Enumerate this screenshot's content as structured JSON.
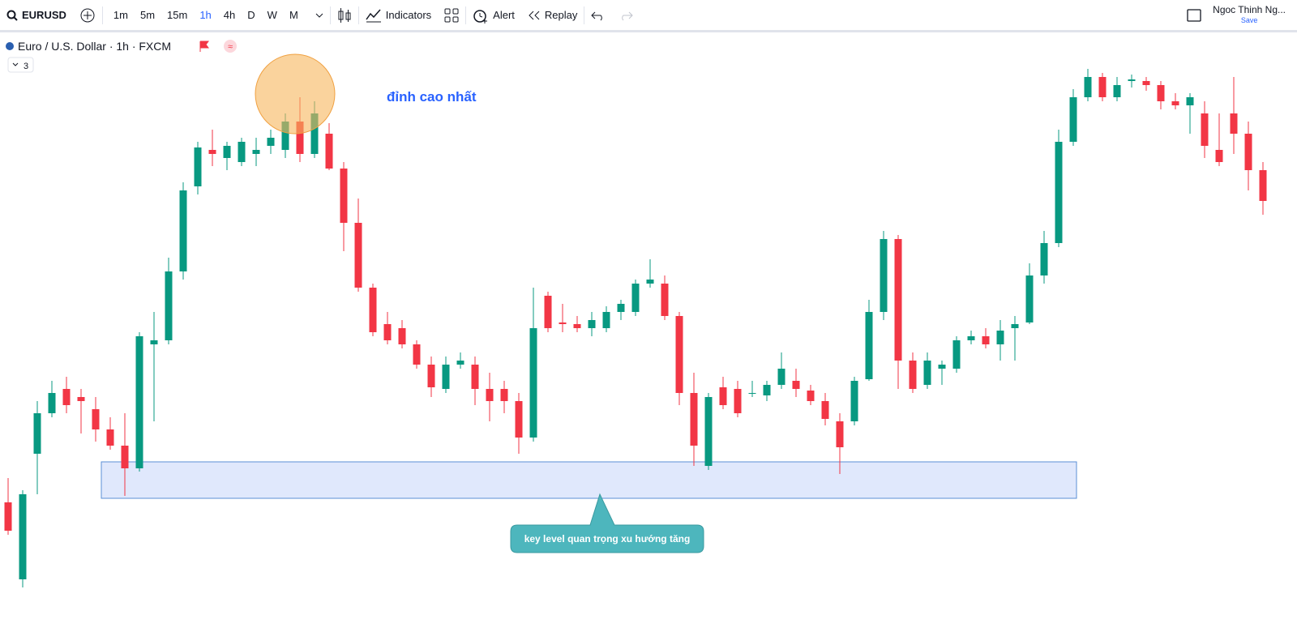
{
  "toolbar": {
    "symbol": "EURUSD",
    "intervals": [
      "1m",
      "5m",
      "15m",
      "1h",
      "4h",
      "D",
      "W",
      "M"
    ],
    "active_interval_index": 3,
    "buttons": [
      "Indicators",
      "Alert",
      "Replay"
    ],
    "user": "Ngoc Thinh Ng...",
    "save": "Save"
  },
  "chart_data": {
    "type": "candlestick",
    "title": "Euro / U.S. Dollar · 1h · FXCM",
    "collapsed_count": "3",
    "up_color": "#089981",
    "down_color": "#f23645",
    "ylim": [
      40,
      760
    ],
    "open": [
      180,
      85,
      240,
      290,
      320,
      310,
      295,
      270,
      250,
      222,
      375,
      380,
      465,
      570,
      615,
      605,
      600,
      610,
      620,
      615,
      650,
      610,
      635,
      592,
      525,
      445,
      400,
      395,
      375,
      350,
      320,
      350,
      350,
      320,
      320,
      305,
      260,
      435,
      402,
      400,
      395,
      395,
      415,
      415,
      450,
      450,
      410,
      315,
      225,
      322,
      320,
      315,
      312,
      325,
      330,
      318,
      305,
      280,
      280,
      332,
      415,
      505,
      355,
      325,
      345,
      345,
      380,
      385,
      375,
      395,
      402,
      460,
      500,
      625,
      680,
      705,
      680,
      700,
      700,
      695,
      675,
      670,
      660,
      615,
      660,
      635,
      590
    ],
    "high": [
      210,
      195,
      305,
      330,
      335,
      320,
      310,
      285,
      290,
      390,
      415,
      482,
      575,
      625,
      640,
      625,
      630,
      630,
      640,
      660,
      680,
      675,
      648,
      600,
      555,
      450,
      415,
      405,
      380,
      360,
      360,
      365,
      360,
      340,
      330,
      315,
      445,
      440,
      425,
      410,
      415,
      422,
      430,
      455,
      480,
      460,
      415,
      340,
      315,
      335,
      330,
      330,
      330,
      365,
      345,
      325,
      315,
      290,
      335,
      430,
      515,
      510,
      365,
      365,
      355,
      385,
      392,
      395,
      405,
      410,
      475,
      515,
      640,
      690,
      715,
      710,
      705,
      708,
      705,
      700,
      685,
      685,
      675,
      660,
      705,
      650,
      600
    ],
    "low": [
      140,
      75,
      190,
      285,
      290,
      265,
      255,
      245,
      188,
      218,
      280,
      375,
      455,
      560,
      595,
      590,
      595,
      595,
      610,
      605,
      600,
      605,
      590,
      490,
      440,
      385,
      375,
      370,
      345,
      310,
      315,
      345,
      300,
      280,
      290,
      240,
      255,
      390,
      390,
      390,
      385,
      390,
      405,
      410,
      445,
      405,
      300,
      225,
      220,
      295,
      285,
      310,
      305,
      320,
      310,
      300,
      275,
      215,
      275,
      330,
      405,
      320,
      315,
      320,
      325,
      340,
      375,
      370,
      355,
      355,
      400,
      450,
      495,
      620,
      675,
      675,
      675,
      692,
      688,
      665,
      665,
      635,
      605,
      595,
      610,
      565,
      535
    ],
    "close": [
      145,
      190,
      290,
      315,
      300,
      305,
      270,
      250,
      222,
      385,
      380,
      465,
      565,
      618,
      610,
      620,
      625,
      615,
      630,
      650,
      610,
      660,
      592,
      525,
      445,
      390,
      380,
      375,
      350,
      322,
      350,
      355,
      320,
      305,
      305,
      260,
      395,
      395,
      400,
      395,
      405,
      415,
      425,
      450,
      455,
      410,
      315,
      250,
      310,
      300,
      290,
      315,
      325,
      345,
      320,
      305,
      283,
      248,
      330,
      415,
      505,
      355,
      320,
      355,
      350,
      380,
      385,
      375,
      392,
      400,
      460,
      500,
      625,
      680,
      705,
      680,
      695,
      702,
      695,
      675,
      670,
      680,
      620,
      600,
      635,
      590,
      552
    ],
    "annotations": {
      "peak": "đỉnh cao nhất",
      "key_level": {
        "label": "key level quan trọng xu hướng tăng",
        "low": 185,
        "high": 230
      }
    }
  }
}
